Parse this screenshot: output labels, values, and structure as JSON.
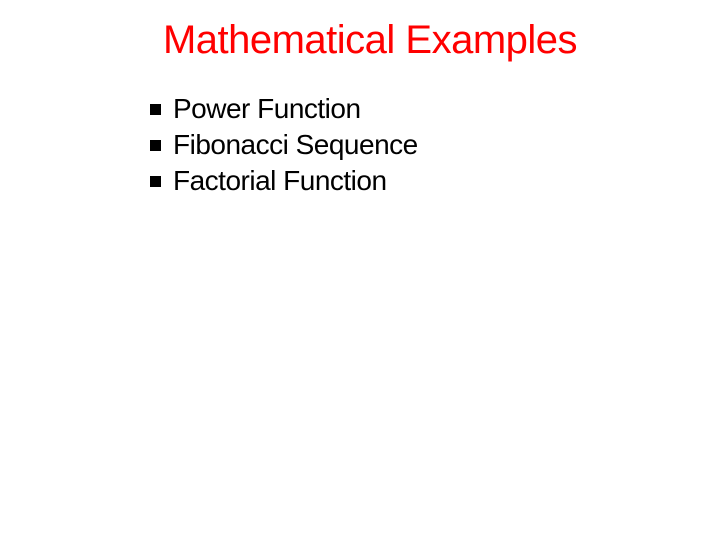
{
  "slide": {
    "title": "Mathematical Examples",
    "title_color": "#ff0000",
    "title_fontsize": 40,
    "bullets": [
      {
        "text": "Power Function"
      },
      {
        "text": "Fibonacci Sequence"
      },
      {
        "text": "Factorial Function"
      }
    ],
    "bullet_text_color": "#000000",
    "bullet_marker_color": "#000000",
    "bullet_fontsize": 28,
    "background_color": "#ffffff"
  }
}
